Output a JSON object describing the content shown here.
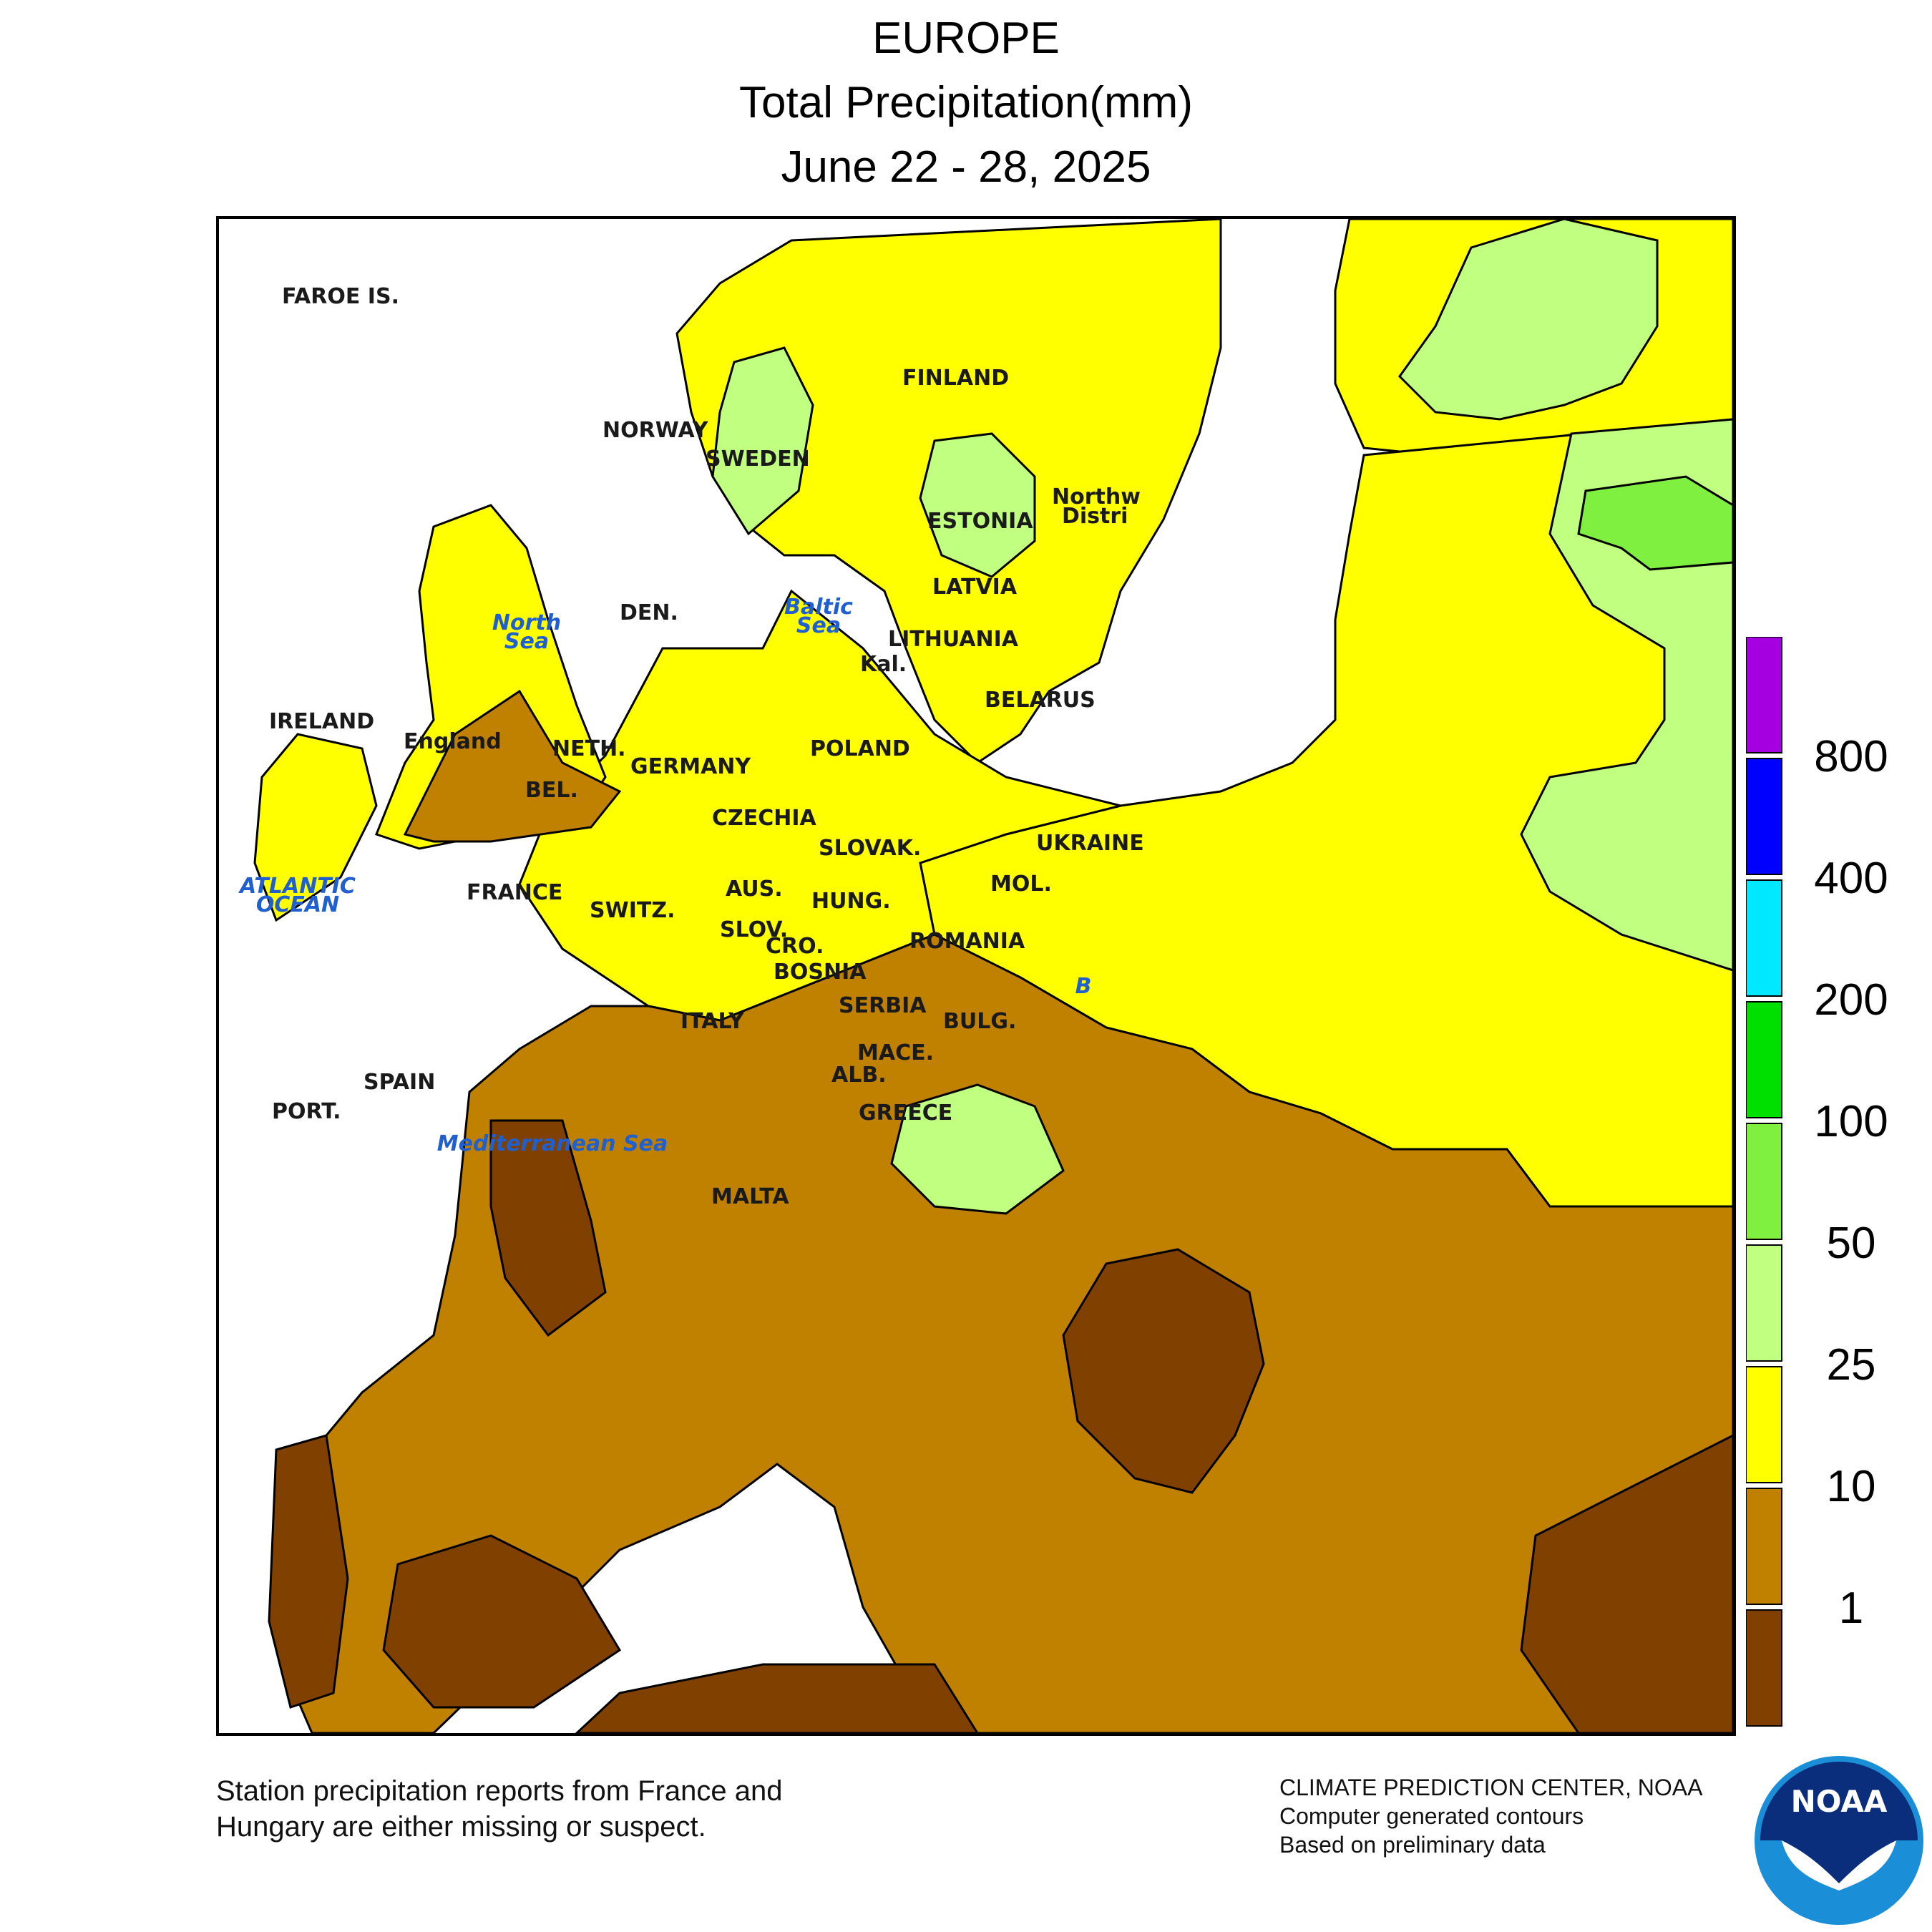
{
  "title": {
    "line1": "EUROPE",
    "line2": "Total Precipitation(mm)",
    "line3": "June 22 - 28, 2025"
  },
  "legend": {
    "thresholds": [
      "800",
      "400",
      "200",
      "100",
      "50",
      "25",
      "10",
      "1"
    ],
    "colors": [
      "#a400e0",
      "#0000ff",
      "#00e8ff",
      "#00e000",
      "#80f040",
      "#c0ff80",
      "#ffff00",
      "#c08000",
      "#804000"
    ]
  },
  "map": {
    "colors": {
      "dry": "#804000",
      "light": "#c08000",
      "moderate": "#ffff00",
      "wet": "#c0ff80",
      "very_wet": "#80f040",
      "border": "#000000"
    },
    "country_labels": [
      "FAROE IS.",
      "NORWAY",
      "SWEDEN",
      "FINLAND",
      "ESTONIA",
      "LATVIA",
      "LITHUANIA",
      "Kal.",
      "BELARUS",
      "DEN.",
      "IRELAND",
      "England",
      "NETH.",
      "BEL.",
      "GERMANY",
      "POLAND",
      "CZECHIA",
      "SLOVAK.",
      "UKRAINE",
      "MOL.",
      "FRANCE",
      "SWITZ.",
      "AUS.",
      "HUNG.",
      "SLOV.",
      "CRO.",
      "BOSNIA",
      "ROMANIA",
      "SERBIA",
      "BULG.",
      "ITALY",
      "MACE.",
      "ALB.",
      "GREECE",
      "SPAIN",
      "PORT.",
      "MALTA",
      "Northw",
      "Distri"
    ],
    "sea_labels": {
      "north_sea": [
        "North",
        "Sea"
      ],
      "baltic_sea": [
        "Baltic",
        "Sea"
      ],
      "atlantic": [
        "ATLANTIC",
        "OCEAN"
      ],
      "mediterranean": "Mediterranean Sea",
      "black_sea_partial": "B"
    }
  },
  "footer": {
    "note_line1": "Station precipitation reports from France and",
    "note_line2": "Hungary are either missing or suspect.",
    "credit_line1": "CLIMATE PREDICTION CENTER, NOAA",
    "credit_line2": "Computer generated contours",
    "credit_line3": "Based on preliminary data",
    "logo_text": "NOAA"
  }
}
